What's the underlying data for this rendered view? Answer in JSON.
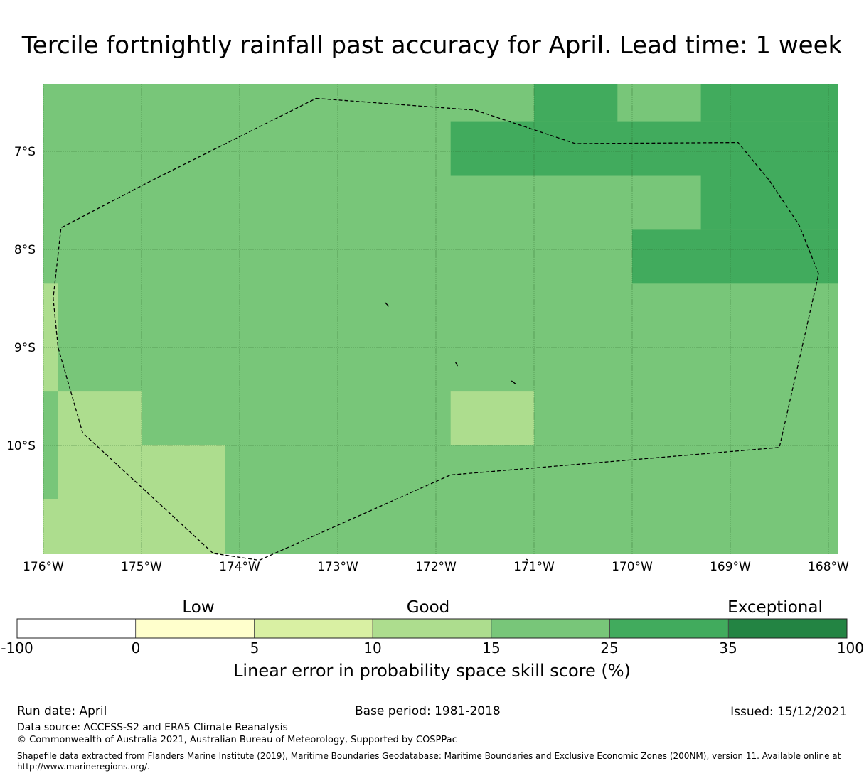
{
  "title": "Tercile fortnightly rainfall past accuracy for April. Lead time: 1 week",
  "map": {
    "lat_labels": [
      "7°S",
      "8°S",
      "9°S",
      "10°S"
    ],
    "lon_labels": [
      "176°W",
      "175°W",
      "174°W",
      "173°W",
      "172°W",
      "171°W",
      "170°W",
      "169°W",
      "168°W"
    ],
    "lon_range": [
      -176,
      -167.9
    ],
    "lat_range": [
      -11.2,
      -6.3
    ],
    "lat_ticks": [
      -7,
      -8,
      -9,
      -10
    ],
    "lon_ticks": [
      -176,
      -175,
      -174,
      -173,
      -172,
      -171,
      -170,
      -169,
      -168
    ],
    "base_category": "15-25",
    "cells": [
      {
        "lon": [
          -176,
          -167.9
        ],
        "lat": [
          -11.2,
          -6.3
        ],
        "category": "15-25"
      },
      {
        "lon": [
          -171.85,
          -171.0
        ],
        "lat": [
          -7.0,
          -6.3
        ],
        "category": "15-25"
      },
      {
        "lon": [
          -171.0,
          -170.15
        ],
        "lat": [
          -6.7,
          -6.3
        ],
        "category": "25-35"
      },
      {
        "lon": [
          -169.3,
          -167.9
        ],
        "lat": [
          -6.7,
          -6.3
        ],
        "category": "25-35"
      },
      {
        "lon": [
          -171.85,
          -167.9
        ],
        "lat": [
          -7.25,
          -6.7
        ],
        "category": "25-35"
      },
      {
        "lon": [
          -169.3,
          -167.9
        ],
        "lat": [
          -7.8,
          -7.25
        ],
        "category": "25-35"
      },
      {
        "lon": [
          -170.0,
          -167.9
        ],
        "lat": [
          -8.35,
          -7.8
        ],
        "category": "25-35"
      },
      {
        "lon": [
          -176,
          -175.85
        ],
        "lat": [
          -9.45,
          -8.35
        ],
        "category": "10-15"
      },
      {
        "lon": [
          -175.85,
          -175.0
        ],
        "lat": [
          -10.0,
          -9.45
        ],
        "category": "10-15"
      },
      {
        "lon": [
          -175.85,
          -174.15
        ],
        "lat": [
          -11.2,
          -10.0
        ],
        "category": "10-15"
      },
      {
        "lon": [
          -176,
          -175.85
        ],
        "lat": [
          -11.2,
          -10.55
        ],
        "category": "10-15"
      },
      {
        "lon": [
          -171.85,
          -171.0
        ],
        "lat": [
          -10.0,
          -9.45
        ],
        "category": "10-15"
      }
    ],
    "eez_boundary": [
      [
        -173.22,
        -6.46
      ],
      [
        -171.6,
        -6.58
      ],
      [
        -170.58,
        -6.92
      ],
      [
        -168.92,
        -6.91
      ],
      [
        -168.6,
        -7.3
      ],
      [
        -168.3,
        -7.75
      ],
      [
        -168.1,
        -8.25
      ],
      [
        -168.5,
        -10.02
      ],
      [
        -171.85,
        -10.3
      ],
      [
        -173.8,
        -11.17
      ],
      [
        -174.27,
        -11.1
      ],
      [
        -175.6,
        -9.87
      ],
      [
        -175.85,
        -9.0
      ],
      [
        -175.9,
        -8.5
      ],
      [
        -175.82,
        -7.78
      ],
      [
        -174.9,
        -7.3
      ],
      [
        -173.22,
        -6.46
      ]
    ],
    "islands": [
      [
        [
          -172.52,
          -8.54
        ],
        [
          -172.48,
          -8.58
        ]
      ],
      [
        [
          -171.8,
          -9.15
        ],
        [
          -171.78,
          -9.19
        ]
      ],
      [
        [
          -171.23,
          -9.34
        ],
        [
          -171.19,
          -9.37
        ]
      ],
      [
        [
          -171.08,
          -11.16
        ],
        [
          -171.06,
          -11.17
        ]
      ]
    ]
  },
  "colorbar": {
    "categories": [
      "Low",
      "Good",
      "Exceptional"
    ],
    "ticks": [
      "-100",
      "0",
      "5",
      "10",
      "15",
      "25",
      "35",
      "100"
    ],
    "colors": [
      "#ffffff",
      "#ffffcc",
      "#d9f0a3",
      "#addd8e",
      "#78c679",
      "#41ab5d",
      "#238443"
    ],
    "title": "Linear error in probability space skill score (%)"
  },
  "category_colors": {
    "10-15": "#addd8e",
    "15-25": "#78c679",
    "25-35": "#41ab5d"
  },
  "footer": {
    "run_date": "Run date: April",
    "base_period": "Base period: 1981-2018",
    "issued": "Issued: 15/12/2021",
    "data_source": "Data source: ACCESS-S2 and ERA5 Climate Reanalysis",
    "copyright": "© Commonwealth of Australia 2021, Australian Bureau of Meteorology, Supported by COSPPac",
    "shapefile": "Shapefile data extracted from Flanders Marine Institute (2019), Maritime Boundaries Geodatabase: Maritime Boundaries and Exclusive Economic Zones (200NM), version 11. Available online at http://www.marineregions.org/."
  }
}
